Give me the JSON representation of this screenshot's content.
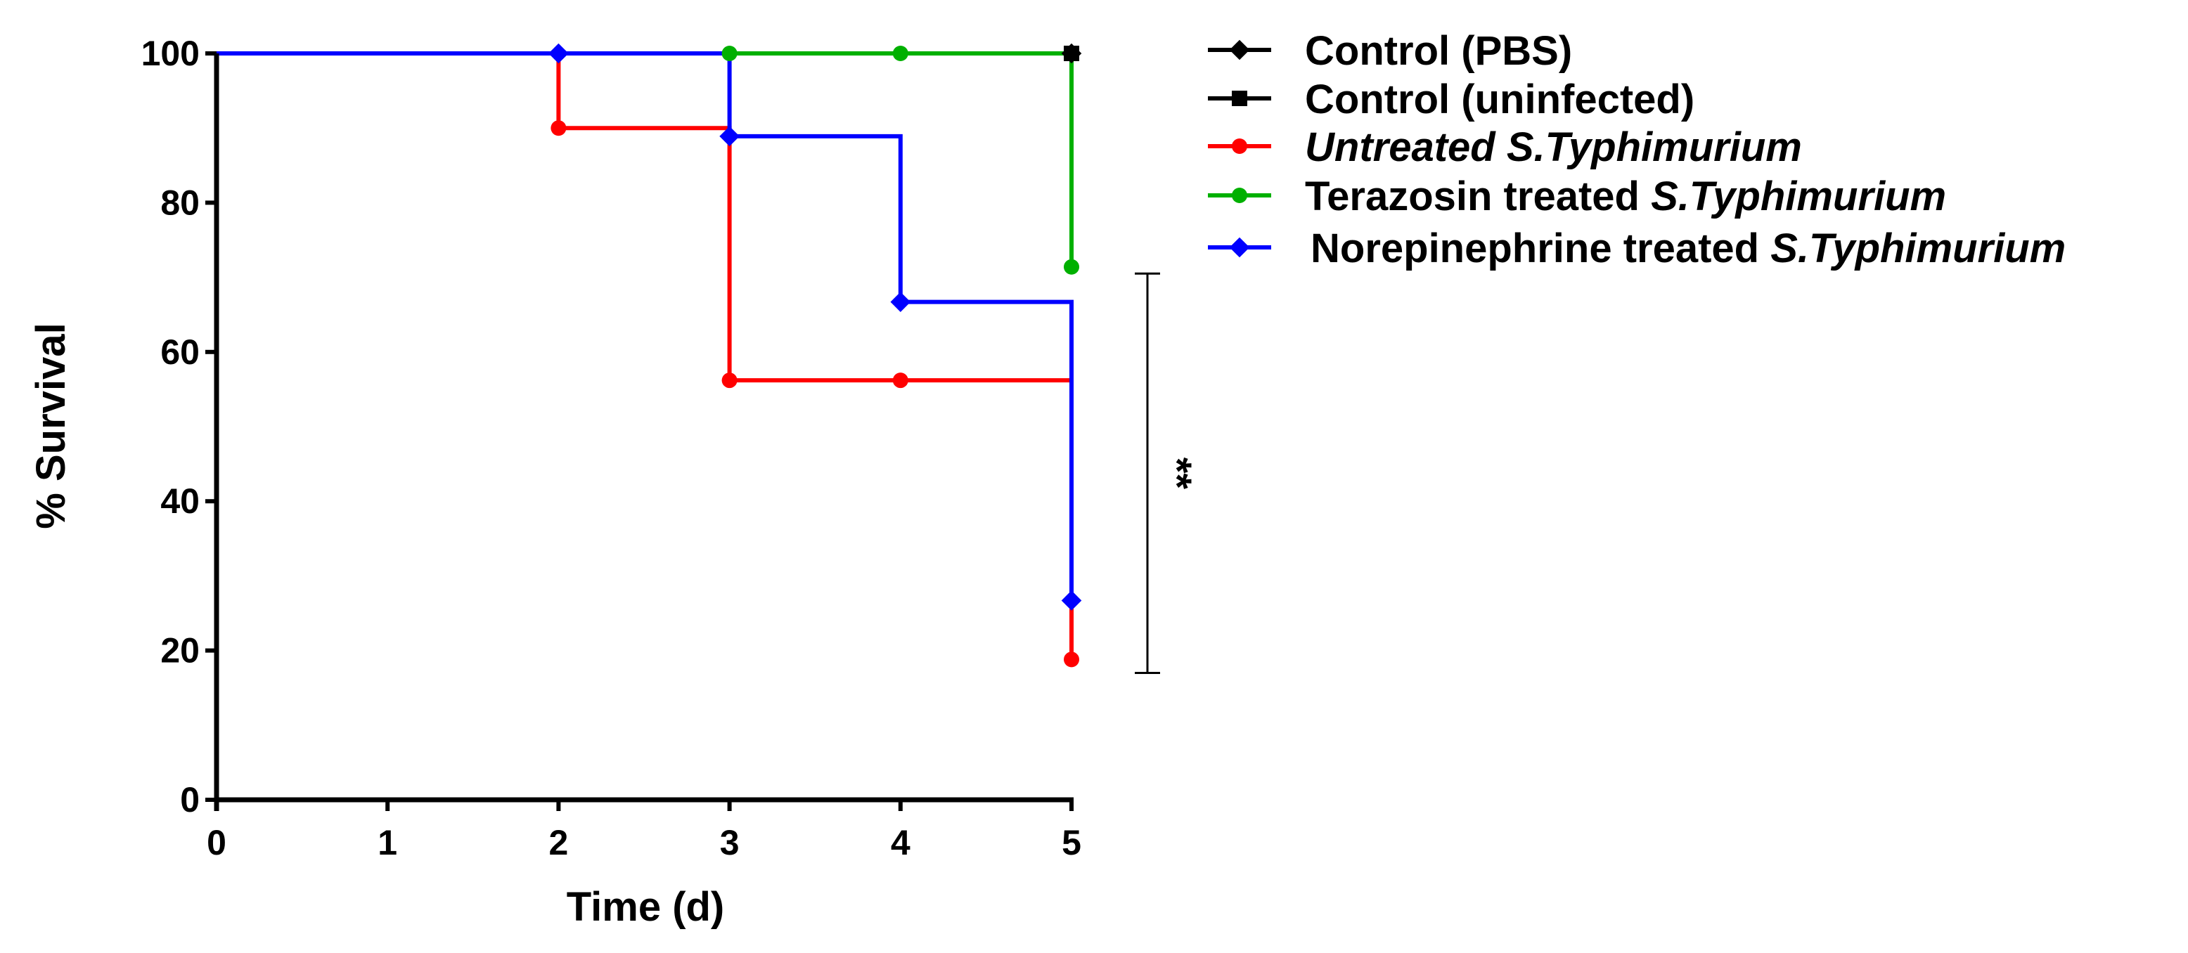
{
  "chart_data": {
    "type": "line",
    "step": true,
    "title": "",
    "xlabel": "Time (d)",
    "ylabel": "% Survival",
    "xlim": [
      0,
      5
    ],
    "ylim": [
      0,
      100
    ],
    "xticks": [
      "0",
      "1",
      "2",
      "3",
      "4",
      "5"
    ],
    "yticks": [
      "0",
      "20",
      "40",
      "60",
      "80",
      "100"
    ],
    "series": [
      {
        "name": "Control (PBS)",
        "label_parts": [
          {
            "text": "Control (PBS)",
            "italic": false
          }
        ],
        "color": "#000000",
        "marker": "diamond",
        "x": [
          5
        ],
        "y": [
          100
        ],
        "steps": [
          [
            0,
            100
          ],
          [
            5,
            100
          ]
        ]
      },
      {
        "name": "Control (uninfected)",
        "label_parts": [
          {
            "text": "Control (uninfected)",
            "italic": false
          }
        ],
        "color": "#000000",
        "marker": "square",
        "x": [
          5
        ],
        "y": [
          100
        ],
        "steps": [
          [
            0,
            100
          ],
          [
            5,
            100
          ]
        ]
      },
      {
        "name": "Untreated S.Typhimurium",
        "label_parts": [
          {
            "text": "Untreated S.Typhimurium",
            "italic": true
          }
        ],
        "color": "#ff0000",
        "marker": "circle",
        "x": [
          2,
          3,
          4,
          5
        ],
        "y": [
          90,
          56.2,
          56.2,
          18.8
        ],
        "steps": [
          [
            0,
            100
          ],
          [
            2,
            100
          ],
          [
            2,
            90
          ],
          [
            3,
            90
          ],
          [
            3,
            56.2
          ],
          [
            5,
            56.2
          ],
          [
            5,
            18.8
          ]
        ]
      },
      {
        "name": "Terazosin treated S.Typhimurium",
        "label_parts": [
          {
            "text": "Terazosin treated ",
            "italic": false
          },
          {
            "text": "S.Typhimurium",
            "italic": true
          }
        ],
        "color": "#00b000",
        "marker": "circle",
        "x": [
          3,
          4,
          5
        ],
        "y": [
          100,
          100,
          71.4
        ],
        "steps": [
          [
            0,
            100
          ],
          [
            5,
            100
          ],
          [
            5,
            71.4
          ]
        ]
      },
      {
        "name": "Norepinephrine treated S.Typhimurium",
        "label_parts": [
          {
            "text": "Norepinephrine treated ",
            "italic": false
          },
          {
            "text": "S.Typhimurium",
            "italic": true
          }
        ],
        "color": "#0000ff",
        "marker": "diamond",
        "x": [
          2,
          3,
          4,
          5
        ],
        "y": [
          100,
          88.9,
          66.7,
          26.7
        ],
        "steps": [
          [
            0,
            100
          ],
          [
            3,
            100
          ],
          [
            3,
            88.9
          ],
          [
            4,
            88.9
          ],
          [
            4,
            66.7
          ],
          [
            5,
            66.7
          ],
          [
            5,
            26.7
          ]
        ]
      }
    ],
    "annotations": [
      {
        "type": "significance_bracket",
        "text": "**",
        "y_range": [
          17,
          70.5
        ]
      }
    ],
    "legend_position": "top-right"
  }
}
